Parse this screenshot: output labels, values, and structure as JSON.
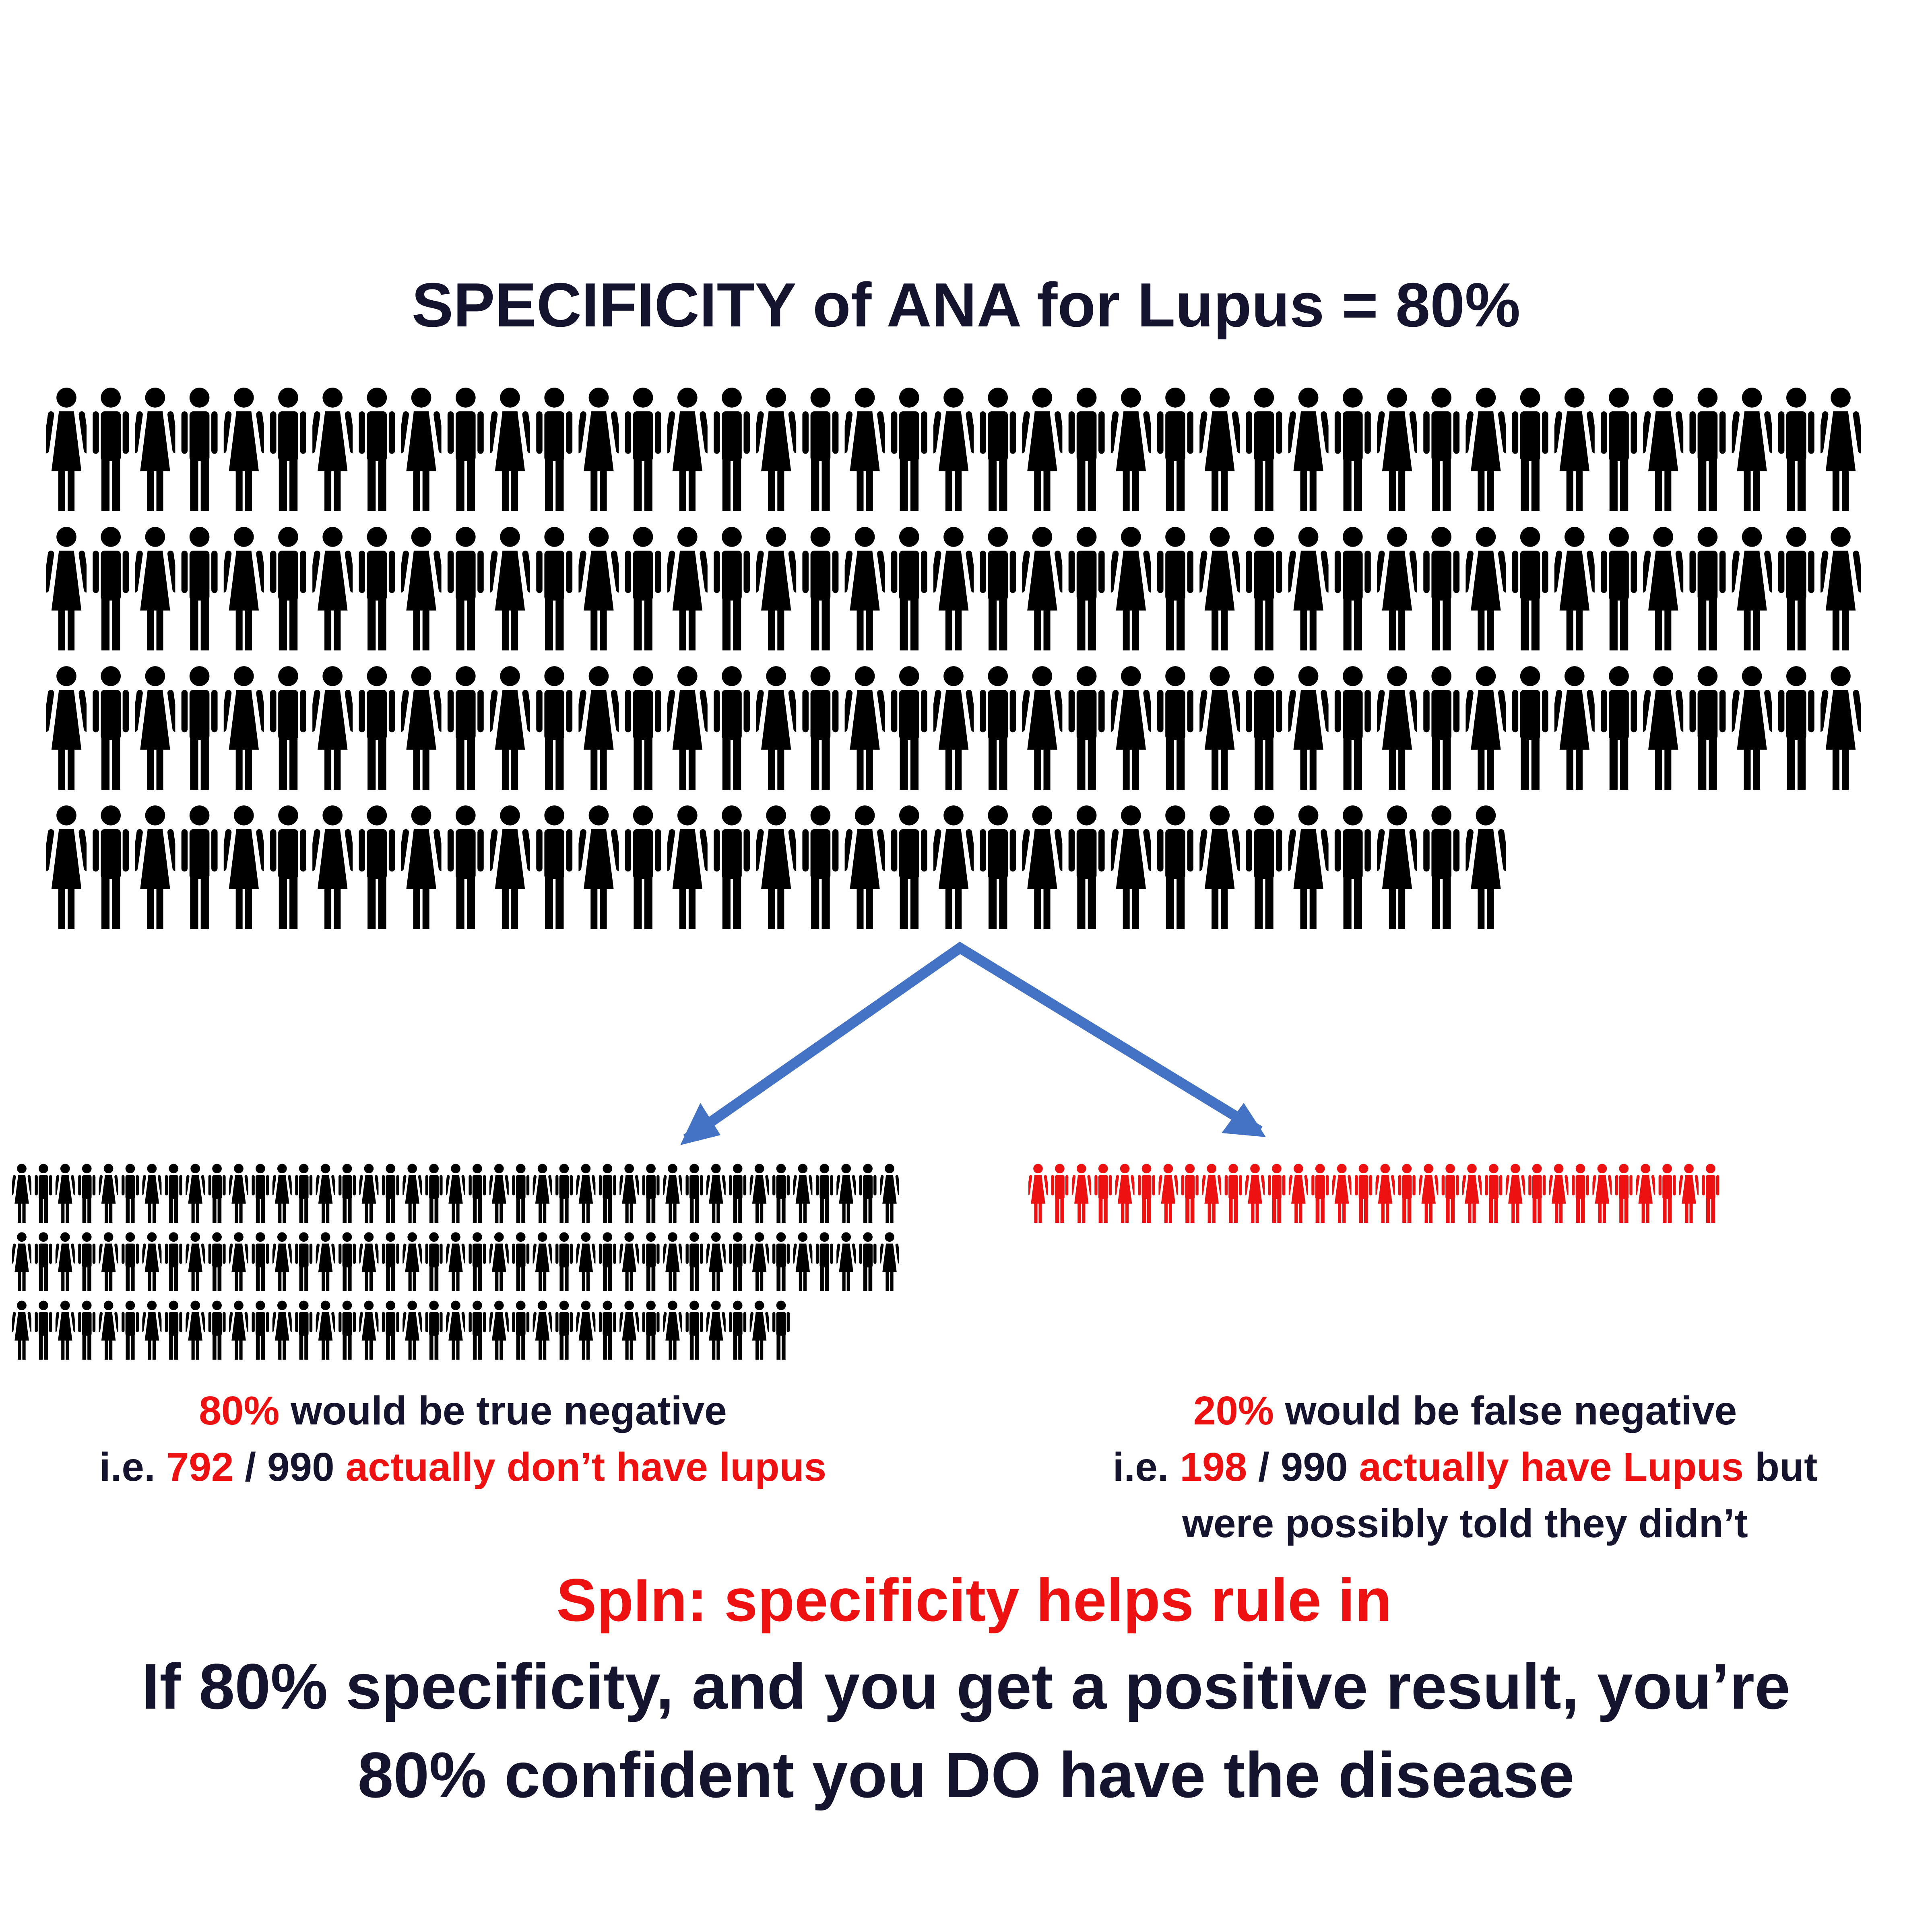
{
  "title": "SPECIFICITY of ANA for Lupus = 80%",
  "true_negative": {
    "percent": "80%",
    "text": "would be true negative",
    "prefix": "i.e.",
    "count": "792",
    "separator": "/",
    "total": "990",
    "description": "actually don’t have lupus"
  },
  "false_negative": {
    "percent": "20%",
    "text": "would be false negative",
    "prefix": "i.e.",
    "count": "198",
    "separator": "/",
    "total": "990",
    "description": "actually have Lupus",
    "suffix": "but",
    "line3": "were possibly told they didn’t"
  },
  "rule": "SpIn: specificity helps rule in",
  "conclusion": [
    "If 80% specificity, and you get a positive result, you’re",
    "80% confident you DO have the disease"
  ]
}
